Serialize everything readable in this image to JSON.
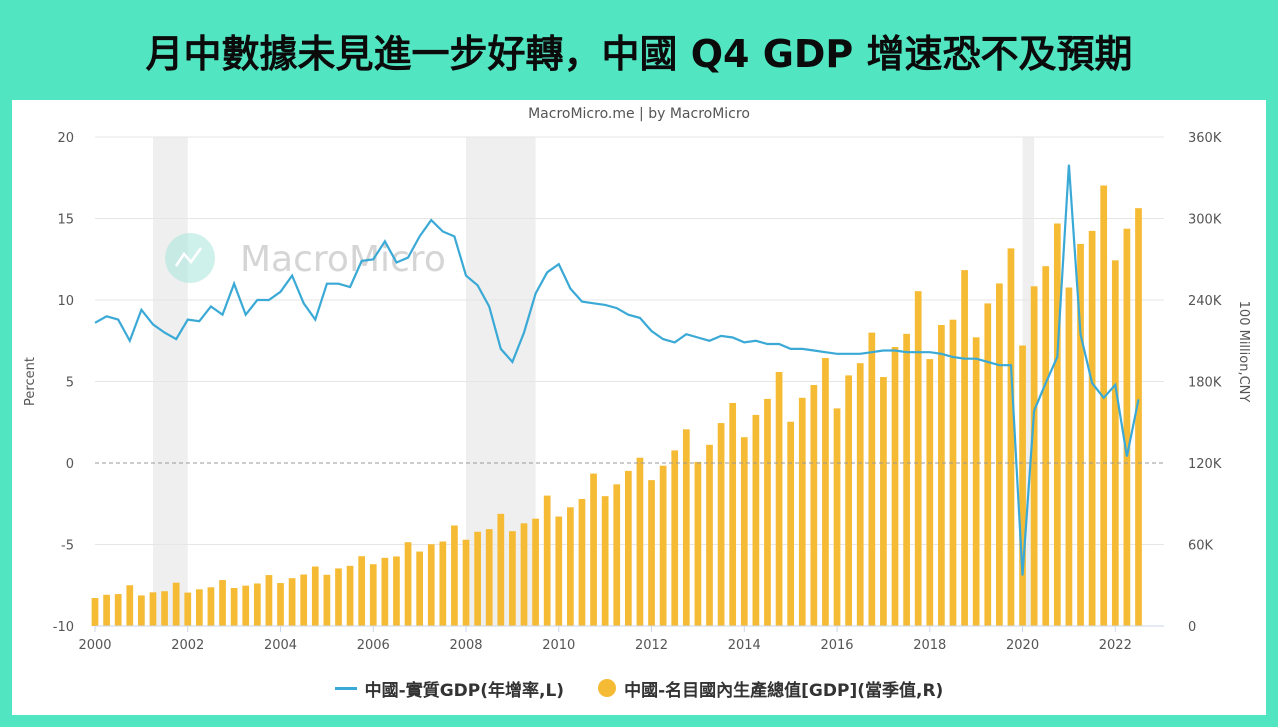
{
  "headline": "月中數據未見進一步好轉，中國 Q4 GDP 增速恐不及預期",
  "source": "MacroMicro.me | by MacroMicro",
  "watermark": "MacroMicro",
  "colors": {
    "line": "#3aa9d6",
    "bar": "#f6bb35",
    "recession": "#efefef",
    "background": "#52e5c2"
  },
  "chart_data": {
    "type": "bar+line",
    "x_start": 2000,
    "x_step": 0.25,
    "x_ticks": [
      "2000",
      "2002",
      "2004",
      "2006",
      "2008",
      "2010",
      "2012",
      "2014",
      "2016",
      "2018",
      "2020",
      "2022"
    ],
    "left_axis": {
      "label": "Percent",
      "range": [
        -10,
        20
      ],
      "ticks": [
        "20",
        "15",
        "10",
        "5",
        "0",
        "-5",
        "-10"
      ]
    },
    "right_axis": {
      "label": "100 Million,CNY",
      "range": [
        0,
        360000
      ],
      "ticks": [
        "360K",
        "300K",
        "240K",
        "180K",
        "120K",
        "60K",
        "0"
      ]
    },
    "recession_bands": [
      [
        2001.25,
        2002.0
      ],
      [
        2008.0,
        2009.5
      ],
      [
        2020.0,
        2020.25
      ]
    ],
    "series": [
      {
        "name": "中國-實質GDP(年增率,L)",
        "type": "line",
        "axis": "left",
        "values": [
          8.6,
          9.0,
          8.8,
          7.5,
          9.4,
          8.5,
          8.0,
          7.6,
          8.8,
          8.7,
          9.6,
          9.1,
          11.0,
          9.1,
          10.0,
          10.0,
          10.5,
          11.5,
          9.8,
          8.8,
          11.0,
          11.0,
          10.8,
          12.4,
          12.5,
          13.6,
          12.3,
          12.6,
          13.9,
          14.9,
          14.2,
          13.9,
          11.5,
          10.9,
          9.6,
          7.0,
          6.2,
          8.0,
          10.4,
          11.7,
          12.2,
          10.7,
          9.9,
          9.8,
          9.7,
          9.5,
          9.1,
          8.9,
          8.1,
          7.6,
          7.4,
          7.9,
          7.7,
          7.5,
          7.8,
          7.7,
          7.4,
          7.5,
          7.3,
          7.3,
          7.0,
          7.0,
          6.9,
          6.8,
          6.7,
          6.7,
          6.7,
          6.8,
          6.9,
          6.9,
          6.8,
          6.8,
          6.8,
          6.7,
          6.5,
          6.4,
          6.4,
          6.2,
          6.0,
          6.0,
          -6.9,
          3.2,
          4.9,
          6.5,
          18.3,
          7.9,
          4.9,
          4.0,
          4.8,
          0.4,
          3.9
        ]
      },
      {
        "name": "中國-名目國內生產總值[GDP](當季值,R)",
        "type": "bar",
        "axis": "right",
        "values": [
          20600,
          23000,
          23500,
          30000,
          22500,
          24800,
          25600,
          31900,
          24600,
          27000,
          28500,
          33800,
          28000,
          29700,
          31300,
          37500,
          31600,
          35200,
          37900,
          43800,
          37700,
          42400,
          44300,
          51400,
          45500,
          50200,
          51200,
          61700,
          54800,
          60200,
          62200,
          74000,
          63500,
          69400,
          71300,
          82600,
          69800,
          75600,
          79000,
          96000,
          80600,
          87400,
          93500,
          112200,
          95600,
          104300,
          114200,
          123900,
          107400,
          118000,
          129300,
          144800,
          120800,
          133400,
          149400,
          164200,
          139000,
          155400,
          167200,
          187000,
          150400,
          168000,
          177400,
          197300,
          160200,
          184500,
          193500,
          216000,
          183300,
          205400,
          215100,
          246500,
          196500,
          221600,
          225500,
          262000,
          212500,
          237500,
          252200,
          278000,
          206500,
          250100,
          264900,
          296300,
          249200,
          281300,
          290900,
          324300,
          269200,
          292500,
          307600
        ]
      }
    ]
  }
}
